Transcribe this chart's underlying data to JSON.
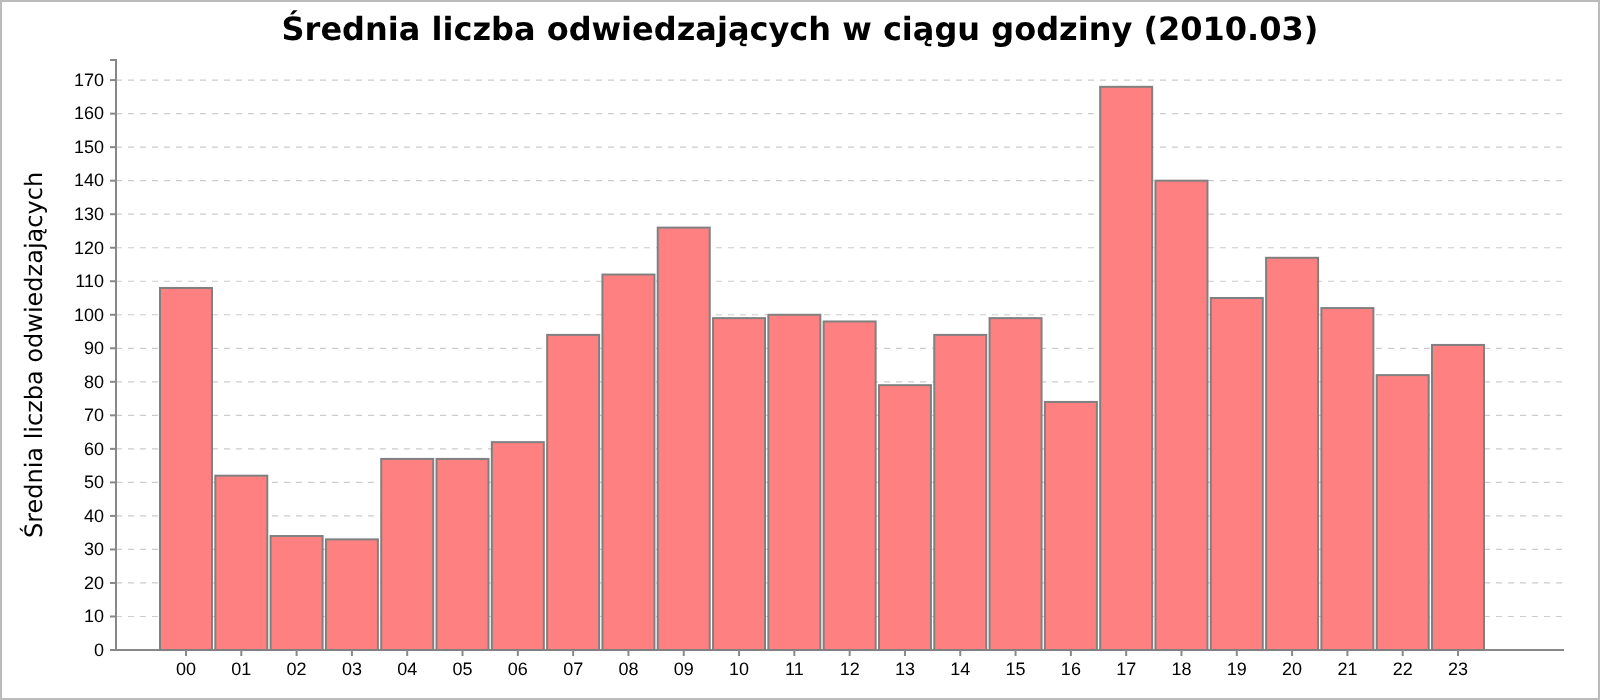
{
  "chart_data": {
    "type": "bar",
    "title": "Średnia liczba odwiedzających w ciągu godziny (2010.03)",
    "ylabel": "Średnia liczba odwiedzających",
    "categories": [
      "00",
      "01",
      "02",
      "03",
      "04",
      "05",
      "06",
      "07",
      "08",
      "09",
      "10",
      "11",
      "12",
      "13",
      "14",
      "15",
      "16",
      "17",
      "18",
      "19",
      "20",
      "21",
      "22",
      "23"
    ],
    "values": [
      108,
      52,
      34,
      33,
      57,
      57,
      62,
      94,
      112,
      126,
      99,
      100,
      98,
      79,
      94,
      99,
      74,
      168,
      140,
      105,
      117,
      102,
      82,
      91
    ],
    "color": "#ff8080",
    "ylim": [
      0,
      176
    ],
    "yticks": [
      0,
      10,
      20,
      30,
      40,
      50,
      60,
      70,
      80,
      90,
      100,
      110,
      120,
      130,
      140,
      150,
      160,
      170
    ],
    "grid": "y"
  }
}
